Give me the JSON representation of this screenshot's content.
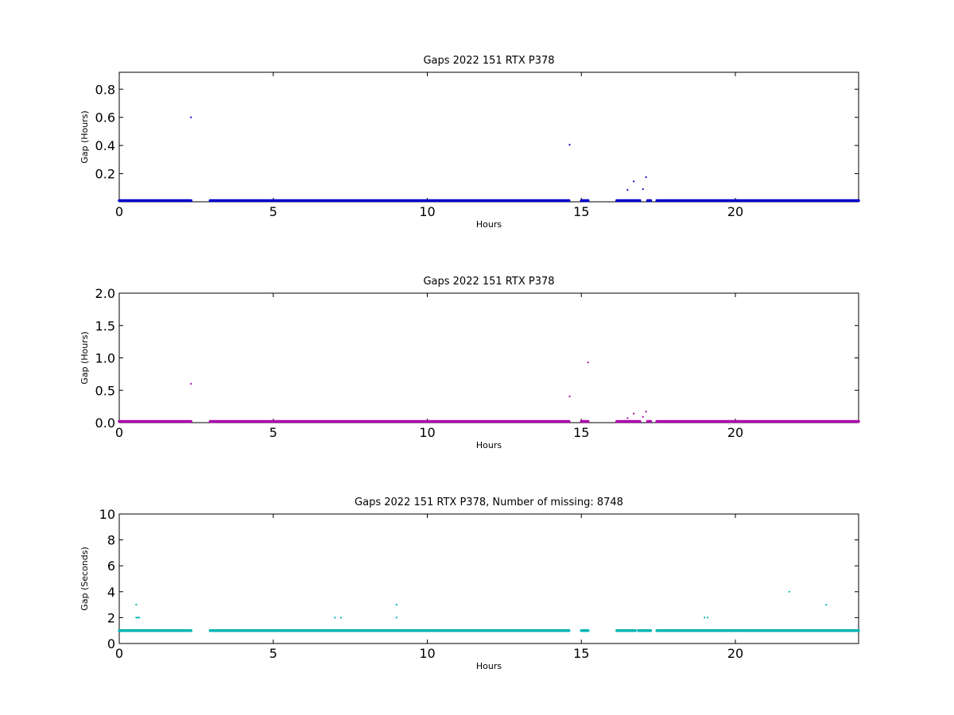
{
  "chart_data": [
    {
      "type": "scatter",
      "title": "Gaps 2022 151 RTX  P378",
      "xlabel": "Hours",
      "ylabel": "Gap (Hours)",
      "xlim": [
        0,
        24
      ],
      "ylim": [
        0,
        0.92
      ],
      "xticks": [
        "0",
        "5",
        "10",
        "15",
        "20"
      ],
      "yticks": [
        "0.2",
        "0.4",
        "0.6",
        "0.8"
      ],
      "grid": false,
      "color": "#0000cc",
      "baseline_segments": [
        [
          0,
          2.33,
          0.003
        ],
        [
          2.95,
          14.6,
          0.003
        ],
        [
          15.0,
          15.22,
          0.003
        ],
        [
          16.15,
          16.9,
          0.003
        ],
        [
          17.15,
          17.25,
          0.003
        ],
        [
          17.45,
          24,
          0.003
        ]
      ],
      "points": [
        [
          2.33,
          0.6
        ],
        [
          14.62,
          0.405
        ],
        [
          16.5,
          0.085
        ],
        [
          16.7,
          0.145
        ],
        [
          17.0,
          0.09
        ],
        [
          17.1,
          0.175
        ]
      ]
    },
    {
      "type": "scatter",
      "title": "Gaps 2022 151 RTX  P378",
      "xlabel": "Hours",
      "ylabel": "Gap (Hours)",
      "xlim": [
        0,
        24
      ],
      "ylim": [
        0,
        2
      ],
      "xticks": [
        "0",
        "5",
        "10",
        "15",
        "20"
      ],
      "yticks": [
        "0.0",
        "0.5",
        "1.0",
        "1.5",
        "2.0"
      ],
      "grid": false,
      "color": "#aa00aa",
      "baseline_segments": [
        [
          0,
          2.33,
          0.005
        ],
        [
          2.95,
          14.6,
          0.005
        ],
        [
          15.0,
          15.22,
          0.005
        ],
        [
          16.15,
          16.9,
          0.005
        ],
        [
          17.15,
          17.25,
          0.005
        ],
        [
          17.45,
          24,
          0.005
        ]
      ],
      "points": [
        [
          2.33,
          0.6
        ],
        [
          14.62,
          0.405
        ],
        [
          15.22,
          0.93
        ],
        [
          16.5,
          0.07
        ],
        [
          16.7,
          0.14
        ],
        [
          17.0,
          0.09
        ],
        [
          17.1,
          0.17
        ]
      ]
    },
    {
      "type": "scatter",
      "title": "Gaps 2022 151 RTX  P378, Number of missing: 8748",
      "xlabel": "Hours",
      "ylabel": "Gap (Seconds)",
      "xlim": [
        0,
        24
      ],
      "ylim": [
        0,
        10
      ],
      "xticks": [
        "0",
        "5",
        "10",
        "15",
        "20"
      ],
      "yticks": [
        "0",
        "2",
        "4",
        "6",
        "8",
        "10"
      ],
      "grid": false,
      "color": "#00b4b4",
      "baseline_segments": [
        [
          0,
          2.33,
          1
        ],
        [
          2.95,
          14.6,
          1
        ],
        [
          15.0,
          15.22,
          1
        ],
        [
          16.15,
          16.55,
          1
        ],
        [
          16.6,
          16.75,
          1
        ],
        [
          16.85,
          17.1,
          1
        ],
        [
          17.15,
          17.25,
          1
        ],
        [
          17.45,
          24,
          1
        ]
      ],
      "points": [
        [
          0.55,
          3
        ],
        [
          0.55,
          2
        ],
        [
          0.6,
          2
        ],
        [
          0.65,
          2
        ],
        [
          7.0,
          2
        ],
        [
          7.2,
          2
        ],
        [
          9.0,
          3
        ],
        [
          9.0,
          2
        ],
        [
          19.0,
          2
        ],
        [
          19.1,
          2
        ],
        [
          21.75,
          4
        ],
        [
          22.95,
          3
        ]
      ]
    }
  ]
}
